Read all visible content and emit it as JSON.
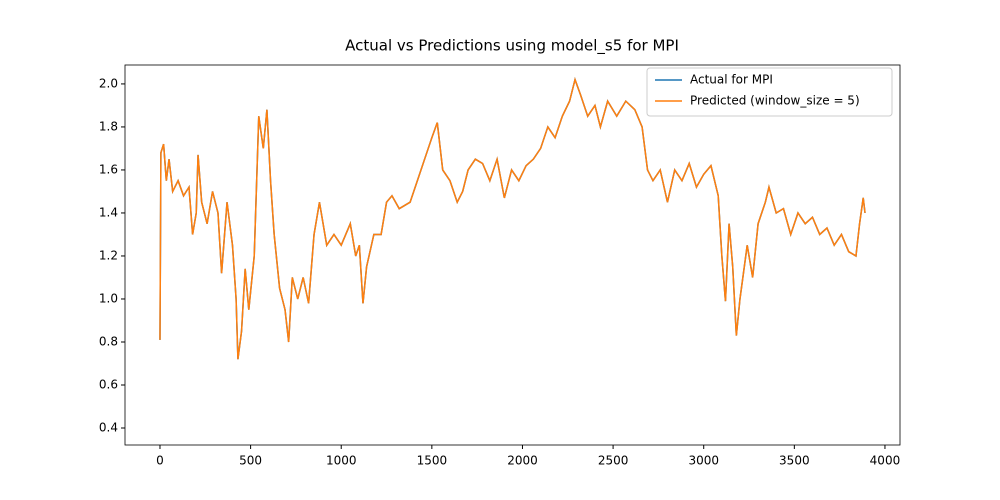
{
  "chart_data": {
    "type": "line",
    "title": "Actual vs Predictions using model_s5 for MPI",
    "x": [
      0,
      5,
      20,
      35,
      50,
      70,
      100,
      130,
      160,
      180,
      200,
      210,
      230,
      260,
      290,
      320,
      340,
      370,
      400,
      420,
      430,
      450,
      470,
      490,
      520,
      545,
      570,
      590,
      610,
      630,
      660,
      690,
      710,
      730,
      760,
      790,
      820,
      850,
      880,
      920,
      960,
      1000,
      1050,
      1080,
      1100,
      1120,
      1140,
      1180,
      1220,
      1250,
      1280,
      1320,
      1380,
      1420,
      1460,
      1500,
      1530,
      1560,
      1600,
      1640,
      1670,
      1700,
      1740,
      1780,
      1820,
      1860,
      1900,
      1940,
      1980,
      2020,
      2060,
      2100,
      2140,
      2180,
      2220,
      2260,
      2290,
      2320,
      2360,
      2400,
      2430,
      2470,
      2520,
      2570,
      2620,
      2660,
      2690,
      2720,
      2760,
      2800,
      2840,
      2880,
      2920,
      2960,
      3000,
      3040,
      3080,
      3100,
      3120,
      3140,
      3160,
      3180,
      3200,
      3240,
      3270,
      3300,
      3340,
      3360,
      3400,
      3440,
      3480,
      3520,
      3560,
      3600,
      3640,
      3680,
      3720,
      3760,
      3800,
      3840,
      3860,
      3880,
      3890
    ],
    "series": [
      {
        "name": "Actual for MPI",
        "color": "#1f77b4",
        "values": [
          0.81,
          1.68,
          1.72,
          1.55,
          1.65,
          1.5,
          1.55,
          1.48,
          1.52,
          1.3,
          1.4,
          1.67,
          1.45,
          1.35,
          1.5,
          1.4,
          1.12,
          1.45,
          1.25,
          1.0,
          0.72,
          0.85,
          1.14,
          0.95,
          1.2,
          1.85,
          1.7,
          1.88,
          1.55,
          1.3,
          1.05,
          0.95,
          0.8,
          1.1,
          1.0,
          1.1,
          0.98,
          1.3,
          1.45,
          1.25,
          1.3,
          1.25,
          1.35,
          1.2,
          1.25,
          0.98,
          1.15,
          1.3,
          1.3,
          1.45,
          1.48,
          1.42,
          1.45,
          1.55,
          1.65,
          1.75,
          1.82,
          1.6,
          1.55,
          1.45,
          1.5,
          1.6,
          1.65,
          1.63,
          1.55,
          1.65,
          1.47,
          1.6,
          1.55,
          1.62,
          1.65,
          1.7,
          1.8,
          1.75,
          1.85,
          1.92,
          2.02,
          1.95,
          1.85,
          1.9,
          1.8,
          1.92,
          1.85,
          1.92,
          1.88,
          1.8,
          1.6,
          1.55,
          1.6,
          1.45,
          1.6,
          1.55,
          1.63,
          1.52,
          1.58,
          1.62,
          1.48,
          1.2,
          0.99,
          1.35,
          1.15,
          0.83,
          1.0,
          1.25,
          1.1,
          1.35,
          1.45,
          1.52,
          1.4,
          1.42,
          1.3,
          1.4,
          1.35,
          1.38,
          1.3,
          1.33,
          1.25,
          1.3,
          1.22,
          1.2,
          1.35,
          1.47,
          1.4
        ]
      },
      {
        "name": "Predicted (window_size = 5)",
        "color": "#ff7f0e",
        "values": [
          0.81,
          1.68,
          1.72,
          1.55,
          1.65,
          1.5,
          1.55,
          1.48,
          1.52,
          1.3,
          1.4,
          1.67,
          1.45,
          1.35,
          1.5,
          1.4,
          1.12,
          1.45,
          1.25,
          1.0,
          0.72,
          0.85,
          1.14,
          0.95,
          1.2,
          1.85,
          1.7,
          1.88,
          1.55,
          1.3,
          1.05,
          0.95,
          0.8,
          1.1,
          1.0,
          1.1,
          0.98,
          1.3,
          1.45,
          1.25,
          1.3,
          1.25,
          1.35,
          1.2,
          1.25,
          0.98,
          1.15,
          1.3,
          1.3,
          1.45,
          1.48,
          1.42,
          1.45,
          1.55,
          1.65,
          1.75,
          1.82,
          1.6,
          1.55,
          1.45,
          1.5,
          1.6,
          1.65,
          1.63,
          1.55,
          1.65,
          1.47,
          1.6,
          1.55,
          1.62,
          1.65,
          1.7,
          1.8,
          1.75,
          1.85,
          1.92,
          2.02,
          1.95,
          1.85,
          1.9,
          1.8,
          1.92,
          1.85,
          1.92,
          1.88,
          1.8,
          1.6,
          1.55,
          1.6,
          1.45,
          1.6,
          1.55,
          1.63,
          1.52,
          1.58,
          1.62,
          1.48,
          1.2,
          0.99,
          1.35,
          1.15,
          0.83,
          1.0,
          1.25,
          1.1,
          1.35,
          1.45,
          1.52,
          1.4,
          1.42,
          1.3,
          1.4,
          1.35,
          1.38,
          1.3,
          1.33,
          1.25,
          1.3,
          1.22,
          1.2,
          1.35,
          1.47,
          1.4
        ]
      }
    ],
    "xlim": [
      -193,
      4083
    ],
    "xticks": [
      0,
      500,
      1000,
      1500,
      2000,
      2500,
      3000,
      3500,
      4000
    ],
    "ylim": [
      0.321,
      2.088
    ],
    "yticks": [
      {
        "value": 0.4,
        "label": "0.4"
      },
      {
        "value": 0.6,
        "label": "0.6"
      },
      {
        "value": 0.8,
        "label": "0.8"
      },
      {
        "value": 1.0,
        "label": "1.0"
      },
      {
        "value": 1.2,
        "label": "1.2"
      },
      {
        "value": 1.4,
        "label": "1.4"
      },
      {
        "value": 1.6,
        "label": "1.6"
      },
      {
        "value": 1.8,
        "label": "1.8"
      },
      {
        "value": 2.0,
        "label": "2.0"
      }
    ],
    "legend": "upper right"
  }
}
